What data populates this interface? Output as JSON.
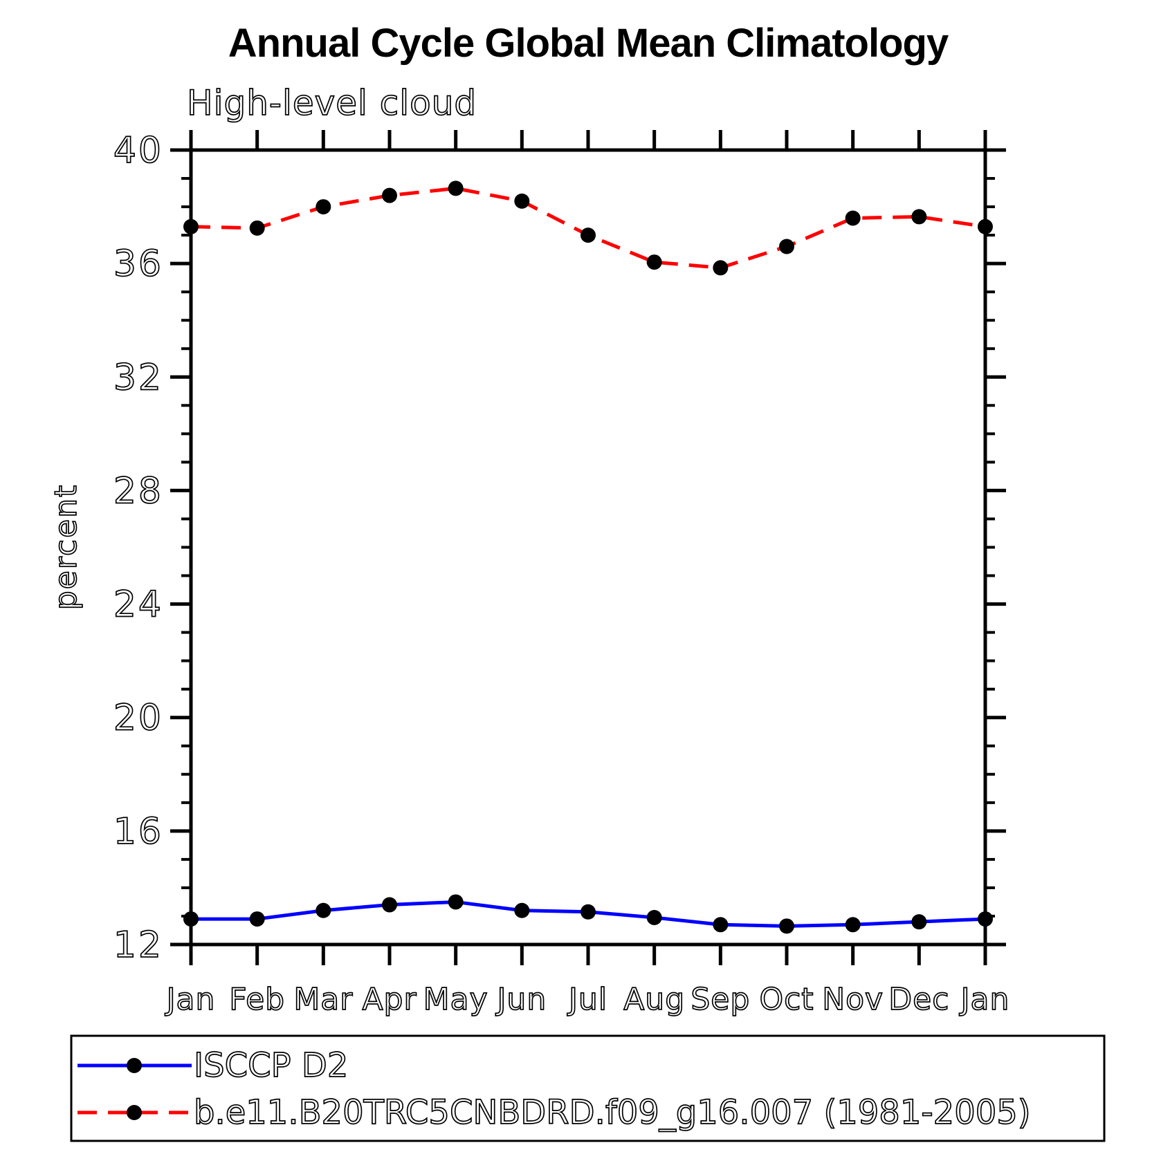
{
  "chart_data": {
    "type": "line",
    "title": "Annual Cycle Global Mean Climatology",
    "subtitle": "High-level cloud",
    "xlabel": "",
    "ylabel": "percent",
    "categories": [
      "Jan",
      "Feb",
      "Mar",
      "Apr",
      "May",
      "Jun",
      "Jul",
      "Aug",
      "Sep",
      "Oct",
      "Nov",
      "Dec",
      "Jan"
    ],
    "ylim": [
      12,
      40
    ],
    "y_major_ticks": [
      12,
      16,
      20,
      24,
      28,
      32,
      36,
      40
    ],
    "y_minor_step": 1,
    "grid": false,
    "legend_position": "bottom-left-box",
    "series": [
      {
        "name": "ISCCP D2",
        "line_style": "solid",
        "color": "#0000ff",
        "marker": "filled-circle",
        "marker_color": "#000000",
        "values": [
          12.9,
          12.9,
          13.2,
          13.4,
          13.5,
          13.2,
          13.15,
          12.95,
          12.7,
          12.65,
          12.7,
          12.8,
          12.9
        ]
      },
      {
        "name": "b.e11.B20TRC5CNBDRD.f09_g16.007 (1981-2005)",
        "line_style": "dashed",
        "color": "#ff0000",
        "marker": "filled-circle",
        "marker_color": "#000000",
        "values": [
          37.3,
          37.25,
          38.0,
          38.4,
          38.65,
          38.2,
          37.0,
          36.05,
          35.85,
          36.6,
          37.6,
          37.65,
          37.3
        ]
      }
    ]
  },
  "colors": {
    "background": "#ffffff",
    "axis": "#000000",
    "title": "#000000",
    "isccp_line": "#0000ff",
    "model_line": "#ff0000",
    "marker": "#000000"
  }
}
